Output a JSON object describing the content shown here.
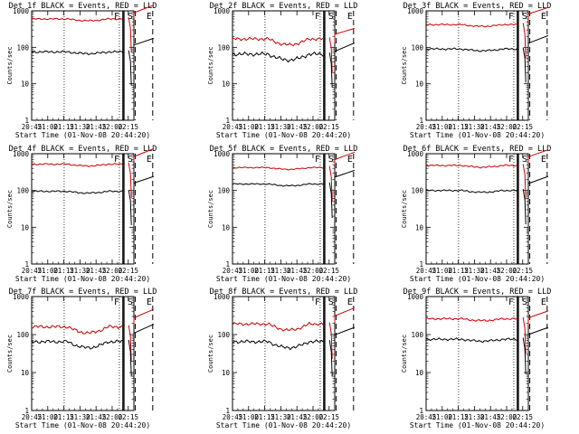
{
  "figure": {
    "background": "#ffffff"
  },
  "chart_data": [
    {
      "type": "line",
      "title": "Det 1f BLACK = Events, RED = LLD",
      "xlabel": "Start Time (01-Nov-08 20:44:20)",
      "ylabel": "Counts/sec",
      "yscale": "log",
      "ylim": [
        1,
        1000
      ],
      "x_ticklabels": [
        "20:45",
        "21:00",
        "21:15",
        "21:30",
        "21:45",
        "22:00",
        "22:15"
      ],
      "y_ticklabels": [
        "1",
        "10",
        "100",
        "1000"
      ],
      "markers": [
        "F",
        "S",
        "E"
      ],
      "grid": false,
      "series": [
        {
          "color": "#cc0000",
          "level": 600,
          "amp": 0.05,
          "post": 650
        },
        {
          "color": "#000000",
          "level": 75,
          "amp": 0.07,
          "post": 80
        }
      ]
    },
    {
      "type": "line",
      "title": "Det 2f BLACK = Events, RED = LLD",
      "xlabel": "Start Time (01-Nov-08 20:44:20)",
      "ylabel": "Counts/sec",
      "yscale": "log",
      "ylim": [
        1,
        1000
      ],
      "x_ticklabels": [
        "20:45",
        "21:00",
        "21:15",
        "21:30",
        "21:45",
        "22:00",
        "22:15"
      ],
      "y_ticklabels": [
        "1",
        "10",
        "100",
        "1000"
      ],
      "markers": [
        "F",
        "S",
        "E"
      ],
      "grid": false,
      "series": [
        {
          "color": "#cc0000",
          "level": 170,
          "amp": 0.1,
          "post": 150
        },
        {
          "color": "#000000",
          "level": 65,
          "amp": 0.12,
          "post": 60
        }
      ]
    },
    {
      "type": "line",
      "title": "Det 3f BLACK = Events, RED = LLD",
      "xlabel": "Start Time (01-Nov-08 20:44:20)",
      "ylabel": "Counts/sec",
      "yscale": "log",
      "ylim": [
        1,
        1000
      ],
      "x_ticklabels": [
        "20:45",
        "21:00",
        "21:15",
        "21:30",
        "21:45",
        "22:00",
        "22:15"
      ],
      "y_ticklabels": [
        "1",
        "10",
        "100",
        "1000"
      ],
      "markers": [
        "F",
        "S",
        "E"
      ],
      "grid": false,
      "series": [
        {
          "color": "#cc0000",
          "level": 420,
          "amp": 0.05,
          "post": 560
        },
        {
          "color": "#000000",
          "level": 90,
          "amp": 0.06,
          "post": 95
        }
      ]
    },
    {
      "type": "line",
      "title": "Det 4f BLACK = Events, RED = LLD",
      "xlabel": "Start Time (01-Nov-08 20:44:20)",
      "ylabel": "Counts/sec",
      "yscale": "log",
      "ylim": [
        1,
        1000
      ],
      "x_ticklabels": [
        "20:45",
        "21:00",
        "21:15",
        "21:30",
        "21:45",
        "22:00",
        "22:15"
      ],
      "y_ticklabels": [
        "1",
        "10",
        "100",
        "1000"
      ],
      "markers": [
        "F",
        "S",
        "E"
      ],
      "grid": false,
      "series": [
        {
          "color": "#cc0000",
          "level": 520,
          "amp": 0.05,
          "post": 620
        },
        {
          "color": "#000000",
          "level": 95,
          "amp": 0.05,
          "post": 110
        }
      ]
    },
    {
      "type": "line",
      "title": "Det 5f BLACK = Events, RED = LLD",
      "xlabel": "Start Time (01-Nov-08 20:44:20)",
      "ylabel": "Counts/sec",
      "yscale": "log",
      "ylim": [
        1,
        1000
      ],
      "x_ticklabels": [
        "20:45",
        "21:00",
        "21:15",
        "21:30",
        "21:45",
        "22:00",
        "22:15"
      ],
      "y_ticklabels": [
        "1",
        "10",
        "100",
        "1000"
      ],
      "markers": [
        "F",
        "S",
        "E"
      ],
      "grid": false,
      "series": [
        {
          "color": "#cc0000",
          "level": 420,
          "amp": 0.04,
          "post": 500
        },
        {
          "color": "#000000",
          "level": 150,
          "amp": 0.04,
          "post": 160
        }
      ]
    },
    {
      "type": "line",
      "title": "Det 6f BLACK = Events, RED = LLD",
      "xlabel": "Start Time (01-Nov-08 20:44:20)",
      "ylabel": "Counts/sec",
      "yscale": "log",
      "ylim": [
        1,
        1000
      ],
      "x_ticklabels": [
        "20:45",
        "21:00",
        "21:15",
        "21:30",
        "21:45",
        "22:00",
        "22:15"
      ],
      "y_ticklabels": [
        "1",
        "10",
        "100",
        "1000"
      ],
      "markers": [
        "F",
        "S",
        "E"
      ],
      "grid": false,
      "series": [
        {
          "color": "#cc0000",
          "level": 480,
          "amp": 0.05,
          "post": 580
        },
        {
          "color": "#000000",
          "level": 100,
          "amp": 0.05,
          "post": 110
        }
      ]
    },
    {
      "type": "line",
      "title": "Det 7f BLACK = Events, RED = LLD",
      "xlabel": "Start Time (01-Nov-08 20:44:20)",
      "ylabel": "Counts/sec",
      "yscale": "log",
      "ylim": [
        1,
        1000
      ],
      "x_ticklabels": [
        "20:45",
        "21:00",
        "21:15",
        "21:30",
        "21:45",
        "22:00",
        "22:15"
      ],
      "y_ticklabels": [
        "1",
        "10",
        "100",
        "1000"
      ],
      "markers": [
        "F",
        "S",
        "E"
      ],
      "grid": false,
      "series": [
        {
          "color": "#cc0000",
          "level": 160,
          "amp": 0.1,
          "post": 210
        },
        {
          "color": "#000000",
          "level": 65,
          "amp": 0.1,
          "post": 85
        }
      ]
    },
    {
      "type": "line",
      "title": "Det 8f BLACK = Events, RED = LLD",
      "xlabel": "Start Time (01-Nov-08 20:44:20)",
      "ylabel": "Counts/sec",
      "yscale": "log",
      "ylim": [
        1,
        1000
      ],
      "x_ticklabels": [
        "20:45",
        "21:00",
        "21:15",
        "21:30",
        "21:45",
        "22:00",
        "22:15"
      ],
      "y_ticklabels": [
        "1",
        "10",
        "100",
        "1000"
      ],
      "markers": [
        "F",
        "S",
        "E"
      ],
      "grid": false,
      "series": [
        {
          "color": "#cc0000",
          "level": 190,
          "amp": 0.09,
          "post": 230
        },
        {
          "color": "#000000",
          "level": 65,
          "amp": 0.1,
          "post": 70
        }
      ]
    },
    {
      "type": "line",
      "title": "Det 9f BLACK = Events, RED = LLD",
      "xlabel": "Start Time (01-Nov-08 20:44:20)",
      "ylabel": "Counts/sec",
      "yscale": "log",
      "ylim": [
        1,
        1000
      ],
      "x_ticklabels": [
        "20:45",
        "21:00",
        "21:15",
        "21:30",
        "21:45",
        "22:00",
        "22:15"
      ],
      "y_ticklabels": [
        "1",
        "10",
        "100",
        "1000"
      ],
      "markers": [
        "F",
        "S",
        "E"
      ],
      "grid": false,
      "series": [
        {
          "color": "#cc0000",
          "level": 260,
          "amp": 0.06,
          "post": 190
        },
        {
          "color": "#000000",
          "level": 75,
          "amp": 0.07,
          "post": 70
        }
      ]
    }
  ]
}
